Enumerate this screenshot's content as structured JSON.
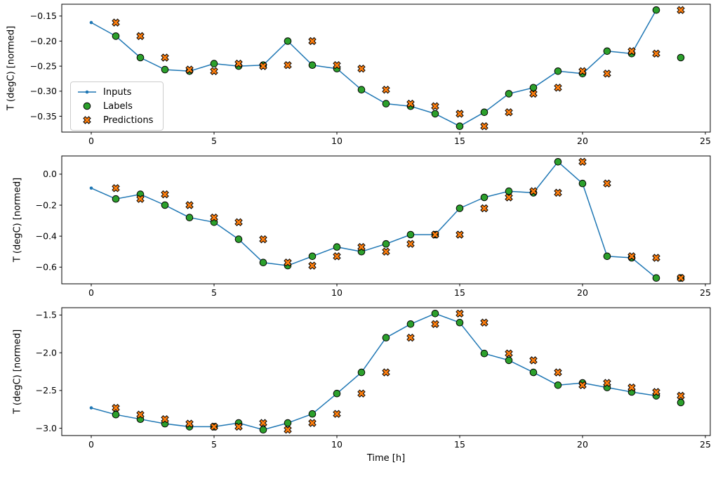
{
  "figure": {
    "xlabel": "Time [h]",
    "ylabel": "T (degC) [normed]",
    "legend": {
      "items": [
        {
          "label": "Inputs"
        },
        {
          "label": "Labels"
        },
        {
          "label": "Predictions"
        }
      ]
    },
    "colors": {
      "inputs": "#1f77b4",
      "labels": "#2ca02c",
      "predictions": "#ff7f0e",
      "edge": "#000000"
    }
  },
  "chart_data": [
    {
      "type": "line+scatter",
      "ylabel": "T (degC) [normed]",
      "legend": [
        "Inputs",
        "Labels",
        "Predictions"
      ],
      "legend_position": "lower left of first subplot",
      "grid": false,
      "xlim": [
        -1.2,
        25.2
      ],
      "ylim": [
        -0.3816,
        -0.1264
      ],
      "xticks": [
        0,
        5,
        10,
        15,
        20,
        25
      ],
      "xtick_labels": [
        "0",
        "5",
        "10",
        "15",
        "20",
        "25"
      ],
      "yticks": [
        -0.15,
        -0.2,
        -0.25,
        -0.3,
        -0.35
      ],
      "ytick_labels": [
        "−0.15",
        "−0.20",
        "−0.25",
        "−0.30",
        "−0.35"
      ],
      "series": [
        {
          "name": "Inputs",
          "kind": "line",
          "marker": "dot",
          "x": [
            0,
            1,
            2,
            3,
            4,
            5,
            6,
            7,
            8,
            9,
            10,
            11,
            12,
            13,
            14,
            15,
            16,
            17,
            18,
            19,
            20,
            21,
            22,
            23
          ],
          "y": [
            -0.163,
            -0.19,
            -0.233,
            -0.257,
            -0.26,
            -0.245,
            -0.25,
            -0.248,
            -0.2,
            -0.248,
            -0.255,
            -0.297,
            -0.325,
            -0.33,
            -0.345,
            -0.37,
            -0.342,
            -0.305,
            -0.293,
            -0.26,
            -0.265,
            -0.22,
            -0.225,
            -0.138
          ]
        },
        {
          "name": "Labels",
          "kind": "scatter",
          "marker": "circle",
          "x": [
            1,
            2,
            3,
            4,
            5,
            6,
            7,
            8,
            9,
            10,
            11,
            12,
            13,
            14,
            15,
            16,
            17,
            18,
            19,
            20,
            21,
            22,
            23,
            24
          ],
          "y": [
            -0.19,
            -0.233,
            -0.257,
            -0.26,
            -0.245,
            -0.25,
            -0.248,
            -0.2,
            -0.248,
            -0.255,
            -0.297,
            -0.325,
            -0.33,
            -0.345,
            -0.37,
            -0.342,
            -0.305,
            -0.293,
            -0.26,
            -0.265,
            -0.22,
            -0.225,
            -0.138,
            -0.233
          ]
        },
        {
          "name": "Predictions",
          "kind": "scatter",
          "marker": "X",
          "x": [
            1,
            2,
            3,
            4,
            5,
            6,
            7,
            8,
            9,
            10,
            11,
            12,
            13,
            14,
            15,
            16,
            17,
            18,
            19,
            20,
            21,
            22,
            23,
            24
          ],
          "y": [
            -0.163,
            -0.19,
            -0.233,
            -0.257,
            -0.26,
            -0.245,
            -0.25,
            -0.248,
            -0.2,
            -0.248,
            -0.255,
            -0.297,
            -0.325,
            -0.33,
            -0.345,
            -0.37,
            -0.342,
            -0.305,
            -0.293,
            -0.26,
            -0.265,
            -0.22,
            -0.225,
            -0.138
          ]
        }
      ]
    },
    {
      "type": "line+scatter",
      "ylabel": "T (degC) [normed]",
      "grid": false,
      "xlim": [
        -1.2,
        25.2
      ],
      "ylim": [
        -0.7075,
        0.1175
      ],
      "xticks": [
        0,
        5,
        10,
        15,
        20,
        25
      ],
      "xtick_labels": [
        "0",
        "5",
        "10",
        "15",
        "20",
        "25"
      ],
      "yticks": [
        0.0,
        -0.2,
        -0.4,
        -0.6
      ],
      "ytick_labels": [
        "0.0",
        "−0.2",
        "−0.4",
        "−0.6"
      ],
      "series": [
        {
          "name": "Inputs",
          "kind": "line",
          "marker": "dot",
          "x": [
            0,
            1,
            2,
            3,
            4,
            5,
            6,
            7,
            8,
            9,
            10,
            11,
            12,
            13,
            14,
            15,
            16,
            17,
            18,
            19,
            20,
            21,
            22,
            23
          ],
          "y": [
            -0.09,
            -0.16,
            -0.13,
            -0.2,
            -0.28,
            -0.31,
            -0.42,
            -0.57,
            -0.59,
            -0.53,
            -0.47,
            -0.5,
            -0.45,
            -0.39,
            -0.39,
            -0.22,
            -0.15,
            -0.11,
            -0.12,
            0.08,
            -0.06,
            -0.53,
            -0.54,
            -0.67
          ]
        },
        {
          "name": "Labels",
          "kind": "scatter",
          "marker": "circle",
          "x": [
            1,
            2,
            3,
            4,
            5,
            6,
            7,
            8,
            9,
            10,
            11,
            12,
            13,
            14,
            15,
            16,
            17,
            18,
            19,
            20,
            21,
            22,
            23,
            24
          ],
          "y": [
            -0.16,
            -0.13,
            -0.2,
            -0.28,
            -0.31,
            -0.42,
            -0.57,
            -0.59,
            -0.53,
            -0.47,
            -0.5,
            -0.45,
            -0.39,
            -0.39,
            -0.22,
            -0.15,
            -0.11,
            -0.12,
            0.08,
            -0.06,
            -0.53,
            -0.54,
            -0.67,
            -0.67
          ]
        },
        {
          "name": "Predictions",
          "kind": "scatter",
          "marker": "X",
          "x": [
            1,
            2,
            3,
            4,
            5,
            6,
            7,
            8,
            9,
            10,
            11,
            12,
            13,
            14,
            15,
            16,
            17,
            18,
            19,
            20,
            21,
            22,
            23,
            24
          ],
          "y": [
            -0.09,
            -0.16,
            -0.13,
            -0.2,
            -0.28,
            -0.31,
            -0.42,
            -0.57,
            -0.59,
            -0.53,
            -0.47,
            -0.5,
            -0.45,
            -0.39,
            -0.39,
            -0.22,
            -0.15,
            -0.11,
            -0.12,
            0.08,
            -0.06,
            -0.53,
            -0.54,
            -0.67
          ]
        }
      ]
    },
    {
      "type": "line+scatter",
      "ylabel": "T (degC) [normed]",
      "xlabel": "Time [h]",
      "grid": false,
      "xlim": [
        -1.2,
        25.2
      ],
      "ylim": [
        -3.097,
        -1.403
      ],
      "xticks": [
        0,
        5,
        10,
        15,
        20,
        25
      ],
      "xtick_labels": [
        "0",
        "5",
        "10",
        "15",
        "20",
        "25"
      ],
      "yticks": [
        -1.5,
        -2.0,
        -2.5,
        -3.0
      ],
      "ytick_labels": [
        "−1.5",
        "−2.0",
        "−2.5",
        "−3.0"
      ],
      "series": [
        {
          "name": "Inputs",
          "kind": "line",
          "marker": "dot",
          "x": [
            0,
            1,
            2,
            3,
            4,
            5,
            6,
            7,
            8,
            9,
            10,
            11,
            12,
            13,
            14,
            15,
            16,
            17,
            18,
            19,
            20,
            21,
            22,
            23
          ],
          "y": [
            -2.73,
            -2.82,
            -2.88,
            -2.94,
            -2.98,
            -2.98,
            -2.93,
            -3.02,
            -2.93,
            -2.81,
            -2.54,
            -2.26,
            -1.8,
            -1.62,
            -1.48,
            -1.6,
            -2.01,
            -2.1,
            -2.26,
            -2.43,
            -2.4,
            -2.46,
            -2.52,
            -2.57
          ]
        },
        {
          "name": "Labels",
          "kind": "scatter",
          "marker": "circle",
          "x": [
            1,
            2,
            3,
            4,
            5,
            6,
            7,
            8,
            9,
            10,
            11,
            12,
            13,
            14,
            15,
            16,
            17,
            18,
            19,
            20,
            21,
            22,
            23,
            24
          ],
          "y": [
            -2.82,
            -2.88,
            -2.94,
            -2.98,
            -2.98,
            -2.93,
            -3.02,
            -2.93,
            -2.81,
            -2.54,
            -2.26,
            -1.8,
            -1.62,
            -1.48,
            -1.6,
            -2.01,
            -2.1,
            -2.26,
            -2.43,
            -2.4,
            -2.46,
            -2.52,
            -2.57,
            -2.66
          ]
        },
        {
          "name": "Predictions",
          "kind": "scatter",
          "marker": "X",
          "x": [
            1,
            2,
            3,
            4,
            5,
            6,
            7,
            8,
            9,
            10,
            11,
            12,
            13,
            14,
            15,
            16,
            17,
            18,
            19,
            20,
            21,
            22,
            23,
            24
          ],
          "y": [
            -2.73,
            -2.82,
            -2.88,
            -2.94,
            -2.98,
            -2.98,
            -2.93,
            -3.02,
            -2.93,
            -2.81,
            -2.54,
            -2.26,
            -1.8,
            -1.62,
            -1.48,
            -1.6,
            -2.01,
            -2.1,
            -2.26,
            -2.43,
            -2.4,
            -2.46,
            -2.52,
            -2.57
          ]
        }
      ]
    }
  ]
}
